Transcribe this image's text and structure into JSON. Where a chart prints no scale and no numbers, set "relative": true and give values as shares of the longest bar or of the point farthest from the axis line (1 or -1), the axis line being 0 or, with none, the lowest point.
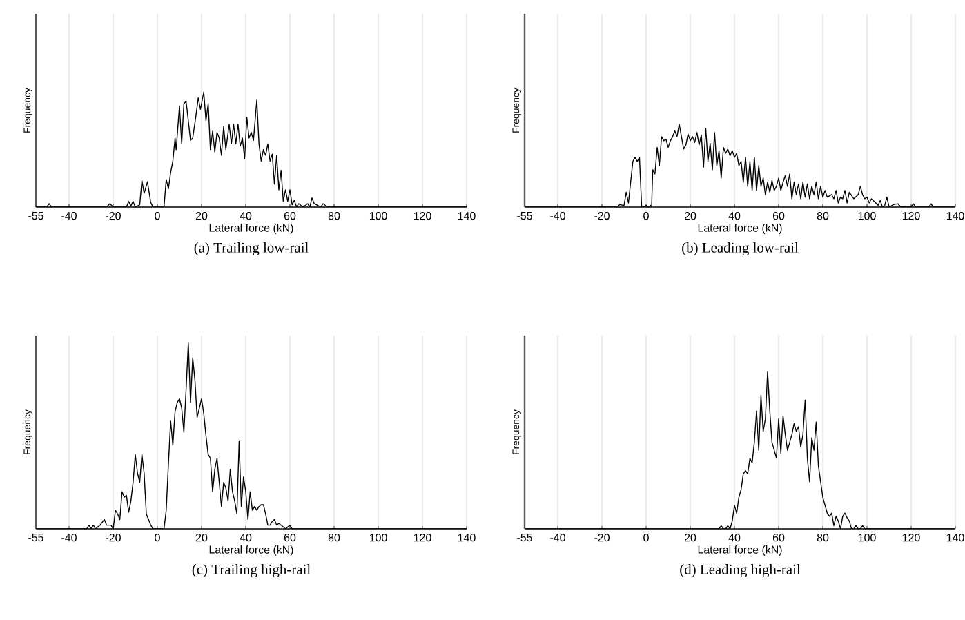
{
  "chart_data": [
    {
      "type": "line",
      "title": "(a)  Trailing low-rail",
      "xlabel": "Lateral force (kN)",
      "ylabel": "Frequency",
      "color": "#000000",
      "relative": true,
      "grid": "x",
      "xlim": [
        -55,
        140
      ],
      "xticks": [
        -55,
        -40,
        -20,
        0,
        20,
        40,
        60,
        80,
        100,
        120,
        140
      ],
      "x": [
        -55,
        -50,
        -49,
        -48,
        -23,
        -21.5,
        -20,
        -14,
        -13,
        -12,
        -11,
        -10,
        -8,
        -7,
        -6,
        -4.5,
        -3,
        -2,
        3,
        4,
        5,
        6,
        7,
        8,
        8.5,
        10,
        11,
        12,
        13,
        14,
        15,
        16,
        17.5,
        18.5,
        19.5,
        21,
        22,
        23,
        24,
        25,
        26,
        27,
        28,
        29,
        30,
        31,
        32.5,
        33.5,
        34.5,
        35.5,
        36.5,
        37.5,
        38.5,
        39.5,
        40.5,
        41.5,
        42.5,
        43.5,
        45,
        46,
        47,
        48,
        49,
        50,
        51,
        52,
        53,
        54,
        55,
        56,
        57,
        58,
        59,
        60,
        61,
        62,
        63,
        64,
        66,
        68,
        69,
        70,
        71,
        72,
        74,
        75,
        77,
        140
      ],
      "values": [
        0,
        0,
        0.03,
        0,
        0,
        0.03,
        0,
        0,
        0.05,
        0.01,
        0.05,
        0,
        0.02,
        0.23,
        0.12,
        0.22,
        0.04,
        0,
        0,
        0.24,
        0.16,
        0.3,
        0.4,
        0.6,
        0.5,
        0.88,
        0.55,
        0.9,
        0.92,
        0.75,
        0.58,
        0.6,
        0.8,
        0.95,
        0.85,
        1.0,
        0.75,
        0.9,
        0.5,
        0.66,
        0.48,
        0.65,
        0.6,
        0.45,
        0.7,
        0.5,
        0.72,
        0.55,
        0.72,
        0.55,
        0.72,
        0.53,
        0.6,
        0.42,
        0.78,
        0.6,
        0.65,
        0.58,
        0.93,
        0.55,
        0.4,
        0.5,
        0.45,
        0.55,
        0.4,
        0.46,
        0.2,
        0.45,
        0.15,
        0.32,
        0.05,
        0.15,
        0.05,
        0.15,
        0.02,
        0.06,
        0,
        0.03,
        0,
        0.03,
        0,
        0.08,
        0.03,
        0.02,
        0,
        0.03,
        0,
        0
      ]
    },
    {
      "type": "line",
      "title": "(b)  Leading low-rail",
      "xlabel": "Lateral force (kN)",
      "ylabel": "Frequency",
      "color": "#000000",
      "relative": true,
      "grid": "x",
      "xlim": [
        -55,
        140
      ],
      "xticks": [
        -55,
        -40,
        -20,
        0,
        20,
        40,
        60,
        80,
        100,
        120,
        140
      ],
      "x": [
        -55,
        -13,
        -12,
        -10,
        -9,
        -8,
        -6,
        -5,
        -4,
        -3,
        -2,
        -1,
        0,
        1,
        2,
        2.5,
        3,
        4,
        5,
        6,
        7,
        8,
        9,
        10,
        11,
        12,
        13,
        14,
        15,
        16,
        17,
        18,
        19,
        20,
        21,
        22,
        23,
        24,
        25,
        26,
        27,
        28,
        29,
        30,
        31,
        32,
        33,
        34,
        35,
        36,
        37,
        38,
        39,
        40,
        41,
        42,
        43,
        44,
        45,
        46,
        47,
        48,
        49,
        50,
        51,
        52,
        53,
        54,
        55,
        56,
        57,
        58,
        59,
        60,
        61,
        62,
        63,
        64,
        65,
        66,
        67,
        68,
        69,
        70,
        71,
        72,
        73,
        74,
        75,
        76,
        77,
        78,
        79,
        80,
        81,
        82,
        84,
        85,
        86,
        87,
        88,
        89,
        90,
        91,
        92,
        94,
        96,
        97,
        98,
        99,
        100,
        101,
        102,
        104,
        105,
        106,
        107,
        108,
        109,
        110,
        112,
        114,
        115,
        117,
        120,
        121,
        122,
        128,
        129,
        130,
        140
      ],
      "values": [
        0,
        0,
        0.03,
        0.02,
        0.18,
        0.05,
        0.55,
        0.6,
        0.55,
        0.6,
        0,
        0,
        0.02,
        0,
        0.02,
        0,
        0.45,
        0.4,
        0.72,
        0.5,
        0.85,
        0.8,
        0.82,
        0.72,
        0.8,
        0.85,
        0.92,
        0.85,
        1.0,
        0.85,
        0.7,
        0.75,
        0.88,
        0.8,
        0.85,
        0.78,
        0.9,
        0.75,
        0.87,
        0.48,
        0.95,
        0.55,
        0.77,
        0.45,
        0.9,
        0.5,
        0.68,
        0.35,
        0.72,
        0.65,
        0.7,
        0.62,
        0.68,
        0.6,
        0.65,
        0.5,
        0.55,
        0.3,
        0.6,
        0.25,
        0.55,
        0.2,
        0.6,
        0.2,
        0.5,
        0.25,
        0.35,
        0.15,
        0.3,
        0.18,
        0.32,
        0.2,
        0.25,
        0.35,
        0.2,
        0.3,
        0.38,
        0.25,
        0.4,
        0.1,
        0.3,
        0.15,
        0.28,
        0.1,
        0.3,
        0.12,
        0.28,
        0.1,
        0.25,
        0.15,
        0.3,
        0.1,
        0.25,
        0.12,
        0.2,
        0.12,
        0.15,
        0.1,
        0.2,
        0.05,
        0.12,
        0.1,
        0.2,
        0.05,
        0.18,
        0.1,
        0.15,
        0.25,
        0.15,
        0.1,
        0.12,
        0.05,
        0.1,
        0.05,
        0.02,
        0.08,
        0,
        0.02,
        0.12,
        0,
        0.03,
        0.04,
        0.01,
        0,
        0,
        0.04,
        0,
        0,
        0.04,
        0,
        0
      ]
    },
    {
      "type": "line",
      "title": "(c)  Trailing high-rail",
      "xlabel": "Lateral force (kN)",
      "ylabel": "Frequency",
      "color": "#000000",
      "relative": true,
      "grid": "x",
      "xlim": [
        -55,
        140
      ],
      "xticks": [
        -55,
        -40,
        -20,
        0,
        20,
        40,
        60,
        80,
        100,
        120,
        140
      ],
      "x": [
        -55,
        -32,
        -31,
        -30,
        -29,
        -28,
        -26,
        -24,
        -23,
        -21,
        -20,
        -19,
        -18,
        -17,
        -16,
        -15,
        -14,
        -13,
        -12,
        -11,
        -10,
        -9,
        -8,
        -7,
        -6,
        -5,
        -3,
        -2,
        3,
        4,
        5,
        6,
        7,
        8,
        9,
        10,
        11,
        12,
        13,
        14,
        15,
        16,
        17,
        18,
        19,
        20,
        21,
        22,
        23,
        24,
        25,
        26,
        27,
        28,
        29,
        30,
        31,
        32,
        33,
        34,
        35,
        36,
        37,
        38,
        39,
        40,
        41,
        42,
        43,
        44,
        45,
        46,
        47,
        48,
        49,
        50,
        51,
        52,
        53,
        54,
        55,
        57,
        58,
        60,
        61,
        140
      ],
      "values": [
        0,
        0,
        0.02,
        0,
        0.02,
        0,
        0.02,
        0.05,
        0.02,
        0.02,
        0,
        0.1,
        0.08,
        0.05,
        0.2,
        0.17,
        0.18,
        0.09,
        0.15,
        0.25,
        0.4,
        0.3,
        0.25,
        0.4,
        0.3,
        0.08,
        0.02,
        0,
        0,
        0.1,
        0.35,
        0.58,
        0.45,
        0.63,
        0.68,
        0.7,
        0.65,
        0.52,
        0.75,
        1.0,
        0.68,
        0.92,
        0.8,
        0.6,
        0.65,
        0.7,
        0.62,
        0.5,
        0.4,
        0.38,
        0.2,
        0.32,
        0.38,
        0.25,
        0.12,
        0.25,
        0.22,
        0.15,
        0.32,
        0.2,
        0.15,
        0.08,
        0.47,
        0.12,
        0.28,
        0.2,
        0.05,
        0.2,
        0.1,
        0.12,
        0.1,
        0.12,
        0.13,
        0.13,
        0.08,
        0.02,
        0.02,
        0.04,
        0.05,
        0.02,
        0.03,
        0.01,
        0,
        0.02,
        0,
        0
      ]
    },
    {
      "type": "line",
      "title": "(d)  Leading high-rail",
      "xlabel": "Lateral force (kN)",
      "ylabel": "Frequency",
      "color": "#000000",
      "relative": true,
      "grid": "x",
      "xlim": [
        -55,
        140
      ],
      "xticks": [
        -55,
        -40,
        -20,
        0,
        20,
        40,
        60,
        80,
        100,
        120,
        140
      ],
      "x": [
        -55,
        33,
        34,
        35,
        36,
        37,
        38,
        39,
        40,
        41,
        42,
        43,
        44,
        45,
        46,
        47,
        48,
        49,
        50,
        51,
        52,
        53,
        54,
        55,
        56,
        57,
        58,
        59,
        60,
        61,
        62,
        63,
        64,
        65,
        66,
        67,
        68,
        69,
        70,
        71,
        72,
        73,
        74,
        75,
        76,
        77,
        78,
        79,
        80,
        81,
        82,
        83,
        84,
        85,
        86,
        87,
        88,
        89,
        90,
        91,
        92,
        93,
        94,
        95,
        96,
        97,
        98,
        99,
        140
      ],
      "values": [
        0,
        0,
        0.02,
        0,
        0,
        0.02,
        0,
        0.05,
        0.15,
        0.1,
        0.2,
        0.25,
        0.35,
        0.37,
        0.35,
        0.45,
        0.42,
        0.55,
        0.75,
        0.5,
        0.85,
        0.62,
        0.7,
        1.0,
        0.75,
        0.55,
        0.5,
        0.45,
        0.7,
        0.48,
        0.72,
        0.6,
        0.5,
        0.55,
        0.6,
        0.67,
        0.62,
        0.65,
        0.52,
        0.6,
        0.82,
        0.45,
        0.3,
        0.58,
        0.5,
        0.68,
        0.4,
        0.3,
        0.2,
        0.15,
        0.1,
        0.08,
        0.1,
        0.02,
        0.08,
        0.05,
        0,
        0.08,
        0.1,
        0.07,
        0.05,
        0,
        0,
        0.02,
        0,
        0,
        0.02,
        0,
        0
      ]
    }
  ]
}
